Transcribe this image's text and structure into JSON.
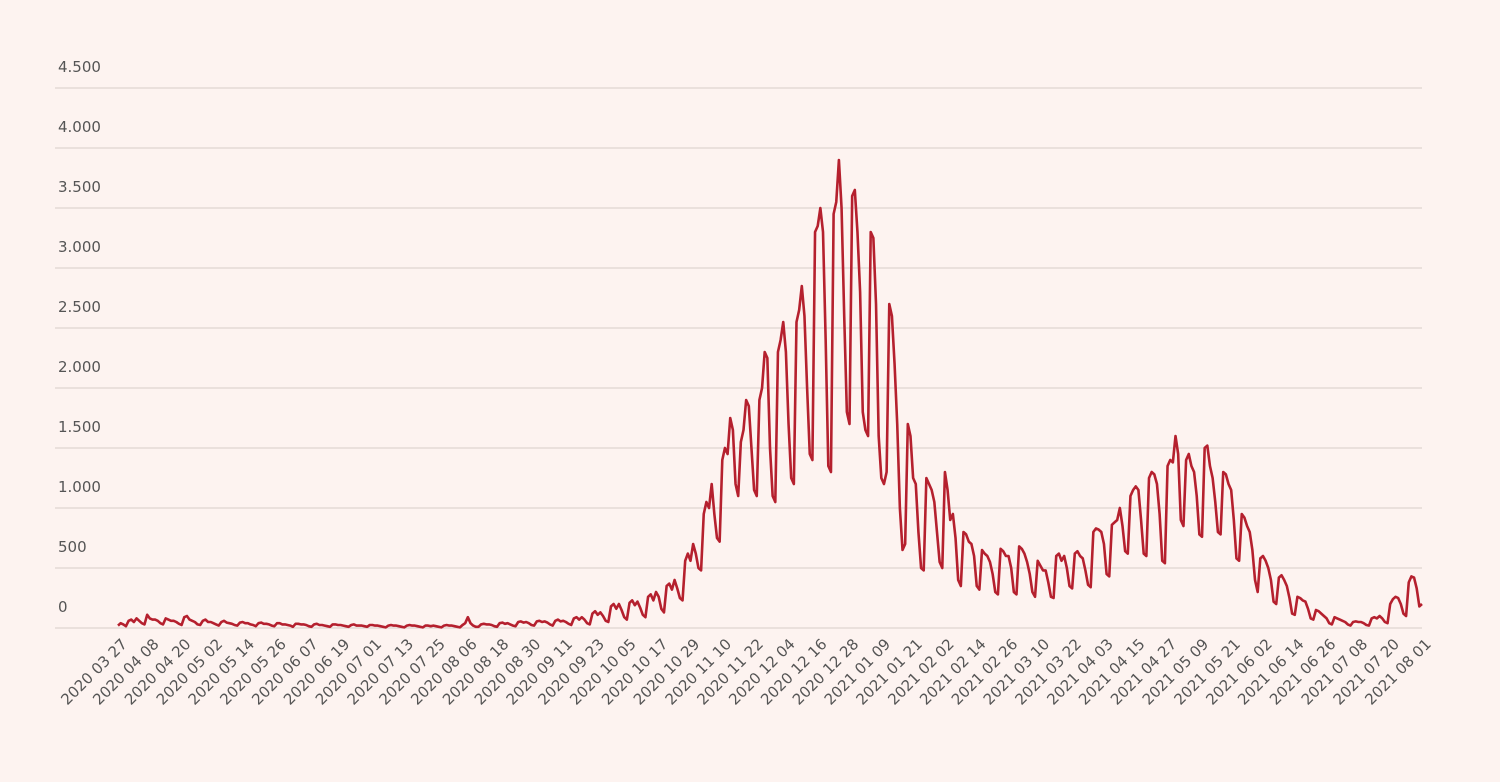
{
  "chart_data": {
    "type": "line",
    "categories": [
      "2020 03 27",
      null,
      null,
      null,
      null,
      null,
      null,
      null,
      null,
      null,
      null,
      null,
      "2020 04 08",
      null,
      null,
      null,
      null,
      null,
      null,
      null,
      null,
      null,
      null,
      null,
      "2020 04 20",
      null,
      null,
      null,
      null,
      null,
      null,
      null,
      null,
      null,
      null,
      null,
      "2020 05 02",
      null,
      null,
      null,
      null,
      null,
      null,
      null,
      null,
      null,
      null,
      null,
      "2020 05 14",
      null,
      null,
      null,
      null,
      null,
      null,
      null,
      null,
      null,
      null,
      null,
      "2020 05 26",
      null,
      null,
      null,
      null,
      null,
      null,
      null,
      null,
      null,
      null,
      null,
      "2020 06 07",
      null,
      null,
      null,
      null,
      null,
      null,
      null,
      null,
      null,
      null,
      null,
      "2020 06 19",
      null,
      null,
      null,
      null,
      null,
      null,
      null,
      null,
      null,
      null,
      null,
      "2020 07 01",
      null,
      null,
      null,
      null,
      null,
      null,
      null,
      null,
      null,
      null,
      null,
      "2020 07 13",
      null,
      null,
      null,
      null,
      null,
      null,
      null,
      null,
      null,
      null,
      null,
      "2020 07 25",
      null,
      null,
      null,
      null,
      null,
      null,
      null,
      null,
      null,
      null,
      null,
      "2020 08 06",
      null,
      null,
      null,
      null,
      null,
      null,
      null,
      null,
      null,
      null,
      null,
      "2020 08 18",
      null,
      null,
      null,
      null,
      null,
      null,
      null,
      null,
      null,
      null,
      null,
      "2020 08 30",
      null,
      null,
      null,
      null,
      null,
      null,
      null,
      null,
      null,
      null,
      null,
      "2020 09 11",
      null,
      null,
      null,
      null,
      null,
      null,
      null,
      null,
      null,
      null,
      null,
      "2020 09 23",
      null,
      null,
      null,
      null,
      null,
      null,
      null,
      null,
      null,
      null,
      null,
      "2020 10 05",
      null,
      null,
      null,
      null,
      null,
      null,
      null,
      null,
      null,
      null,
      null,
      "2020 10 17",
      null,
      null,
      null,
      null,
      null,
      null,
      null,
      null,
      null,
      null,
      null,
      "2020 10 29",
      null,
      null,
      null,
      null,
      null,
      null,
      null,
      null,
      null,
      null,
      null,
      "2020 11 10",
      null,
      null,
      null,
      null,
      null,
      null,
      null,
      null,
      null,
      null,
      null,
      "2020 11 22",
      null,
      null,
      null,
      null,
      null,
      null,
      null,
      null,
      null,
      null,
      null,
      "2020 12 04",
      null,
      null,
      null,
      null,
      null,
      null,
      null,
      null,
      null,
      null,
      null,
      "2020 12 16",
      null,
      null,
      null,
      null,
      null,
      null,
      null,
      null,
      null,
      null,
      null,
      "2020 12 28",
      null,
      null,
      null,
      null,
      null,
      null,
      null,
      null,
      null,
      null,
      null,
      "2021 01 09",
      null,
      null,
      null,
      null,
      null,
      null,
      null,
      null,
      null,
      null,
      null,
      "2021 01 21",
      null,
      null,
      null,
      null,
      null,
      null,
      null,
      null,
      null,
      null,
      null,
      "2021 02 02",
      null,
      null,
      null,
      null,
      null,
      null,
      null,
      null,
      null,
      null,
      null,
      "2021 02 14",
      null,
      null,
      null,
      null,
      null,
      null,
      null,
      null,
      null,
      null,
      null,
      "2021 02 26",
      null,
      null,
      null,
      null,
      null,
      null,
      null,
      null,
      null,
      null,
      null,
      "2021 03 10",
      null,
      null,
      null,
      null,
      null,
      null,
      null,
      null,
      null,
      null,
      null,
      "2021 03 22",
      null,
      null,
      null,
      null,
      null,
      null,
      null,
      null,
      null,
      null,
      null,
      "2021 04 03",
      null,
      null,
      null,
      null,
      null,
      null,
      null,
      null,
      null,
      null,
      null,
      "2021 04 15",
      null,
      null,
      null,
      null,
      null,
      null,
      null,
      null,
      null,
      null,
      null,
      "2021 04 27",
      null,
      null,
      null,
      null,
      null,
      null,
      null,
      null,
      null,
      null,
      null,
      "2021 05 09",
      null,
      null,
      null,
      null,
      null,
      null,
      null,
      null,
      null,
      null,
      null,
      "2021 05 21",
      null,
      null,
      null,
      null,
      null,
      null,
      null,
      null,
      null,
      null,
      null,
      "2021 06 02",
      null,
      null,
      null,
      null,
      null,
      null,
      null,
      null,
      null,
      null,
      null,
      "2021 06 14",
      null,
      null,
      null,
      null,
      null,
      null,
      null,
      null,
      null,
      null,
      null,
      "2021 06 26",
      null,
      null,
      null,
      null,
      null,
      null,
      null,
      null,
      null,
      null,
      null,
      "2021 07 08",
      null,
      null,
      null,
      null,
      null,
      null,
      null,
      null,
      null,
      null,
      null,
      "2021 07 20",
      null,
      null,
      null,
      null,
      null,
      null,
      null,
      null,
      null,
      null,
      null,
      "2021 08 01"
    ],
    "values": [
      20,
      40,
      30,
      15,
      60,
      70,
      50,
      80,
      60,
      40,
      30,
      110,
      80,
      70,
      70,
      60,
      40,
      30,
      80,
      70,
      60,
      60,
      50,
      35,
      25,
      90,
      100,
      70,
      60,
      50,
      30,
      25,
      60,
      70,
      50,
      50,
      40,
      30,
      20,
      50,
      60,
      45,
      40,
      35,
      25,
      20,
      45,
      50,
      40,
      40,
      30,
      25,
      15,
      40,
      45,
      35,
      35,
      30,
      20,
      15,
      40,
      40,
      30,
      30,
      25,
      20,
      10,
      35,
      35,
      30,
      30,
      25,
      15,
      10,
      30,
      35,
      25,
      25,
      20,
      15,
      10,
      30,
      30,
      25,
      25,
      20,
      15,
      10,
      25,
      30,
      20,
      20,
      20,
      15,
      10,
      25,
      25,
      20,
      20,
      15,
      10,
      5,
      20,
      25,
      20,
      20,
      15,
      10,
      5,
      20,
      25,
      20,
      20,
      15,
      10,
      5,
      20,
      20,
      15,
      20,
      15,
      10,
      5,
      20,
      25,
      20,
      20,
      15,
      10,
      5,
      25,
      40,
      90,
      40,
      20,
      10,
      10,
      30,
      35,
      30,
      30,
      25,
      15,
      10,
      40,
      45,
      35,
      40,
      30,
      20,
      15,
      50,
      55,
      45,
      50,
      40,
      25,
      20,
      55,
      60,
      50,
      55,
      45,
      30,
      20,
      60,
      70,
      55,
      60,
      50,
      35,
      25,
      80,
      90,
      70,
      90,
      70,
      40,
      30,
      120,
      140,
      110,
      130,
      100,
      60,
      50,
      180,
      200,
      160,
      200,
      150,
      90,
      70,
      210,
      230,
      190,
      220,
      170,
      110,
      90,
      260,
      280,
      230,
      300,
      260,
      160,
      130,
      350,
      370,
      320,
      400,
      330,
      250,
      230,
      560,
      620,
      560,
      700,
      620,
      500,
      480,
      950,
      1050,
      1000,
      1200,
      950,
      750,
      720,
      1400,
      1500,
      1450,
      1750,
      1650,
      1200,
      1100,
      1550,
      1650,
      1900,
      1850,
      1500,
      1150,
      1100,
      1900,
      2000,
      2300,
      2250,
      1500,
      1100,
      1050,
      2300,
      2400,
      2550,
      2300,
      1700,
      1250,
      1200,
      2550,
      2650,
      2850,
      2600,
      2000,
      1450,
      1400,
      3300,
      3350,
      3500,
      3300,
      2400,
      1350,
      1300,
      3450,
      3550,
      3900,
      3500,
      2600,
      1800,
      1700,
      3600,
      3650,
      3300,
      2800,
      1800,
      1650,
      1600,
      3300,
      3250,
      2700,
      1600,
      1250,
      1200,
      1300,
      2700,
      2600,
      2200,
      1700,
      1000,
      650,
      700,
      1700,
      1600,
      1250,
      1200,
      800,
      500,
      480,
      1250,
      1200,
      1150,
      1050,
      800,
      550,
      500,
      1300,
      1150,
      900,
      950,
      750,
      400,
      350,
      800,
      780,
      720,
      700,
      600,
      350,
      320,
      650,
      620,
      600,
      550,
      450,
      300,
      280,
      660,
      640,
      600,
      600,
      500,
      300,
      280,
      680,
      660,
      620,
      550,
      450,
      300,
      260,
      560,
      520,
      480,
      480,
      380,
      260,
      250,
      600,
      620,
      560,
      600,
      500,
      350,
      330,
      620,
      640,
      600,
      580,
      480,
      360,
      340,
      800,
      830,
      820,
      800,
      700,
      450,
      430,
      860,
      880,
      900,
      1000,
      850,
      640,
      620,
      1100,
      1150,
      1180,
      1150,
      900,
      620,
      600,
      1250,
      1300,
      1280,
      1200,
      950,
      560,
      540,
      1350,
      1400,
      1380,
      1600,
      1450,
      900,
      850,
      1400,
      1450,
      1350,
      1300,
      1100,
      780,
      760,
      1500,
      1520,
      1350,
      1250,
      1050,
      800,
      780,
      1300,
      1280,
      1200,
      1150,
      900,
      580,
      560,
      950,
      920,
      850,
      800,
      650,
      400,
      300,
      580,
      600,
      560,
      500,
      400,
      220,
      200,
      420,
      440,
      400,
      350,
      250,
      120,
      110,
      260,
      250,
      230,
      220,
      160,
      80,
      70,
      150,
      140,
      120,
      100,
      80,
      40,
      30,
      90,
      80,
      70,
      60,
      50,
      30,
      20,
      50,
      55,
      50,
      50,
      40,
      25,
      20,
      80,
      90,
      80,
      100,
      80,
      50,
      40,
      200,
      240,
      260,
      250,
      200,
      120,
      100,
      380,
      430,
      420,
      330,
      180,
      200
    ],
    "color": "#b5202e",
    "ylim": [
      0,
      4500
    ],
    "yticks": [
      0,
      500,
      {
        "value": 1000,
        "label": "1.000"
      },
      {
        "value": 1500,
        "label": "1.500"
      },
      {
        "value": 2000,
        "label": "2.000"
      },
      {
        "value": 2500,
        "label": "2.500"
      },
      {
        "value": 3000,
        "label": "3.000"
      },
      {
        "value": 3500,
        "label": "3.500"
      },
      {
        "value": 4000,
        "label": "4.000"
      },
      {
        "value": 4500,
        "label": "4.500"
      }
    ],
    "grid": true
  }
}
